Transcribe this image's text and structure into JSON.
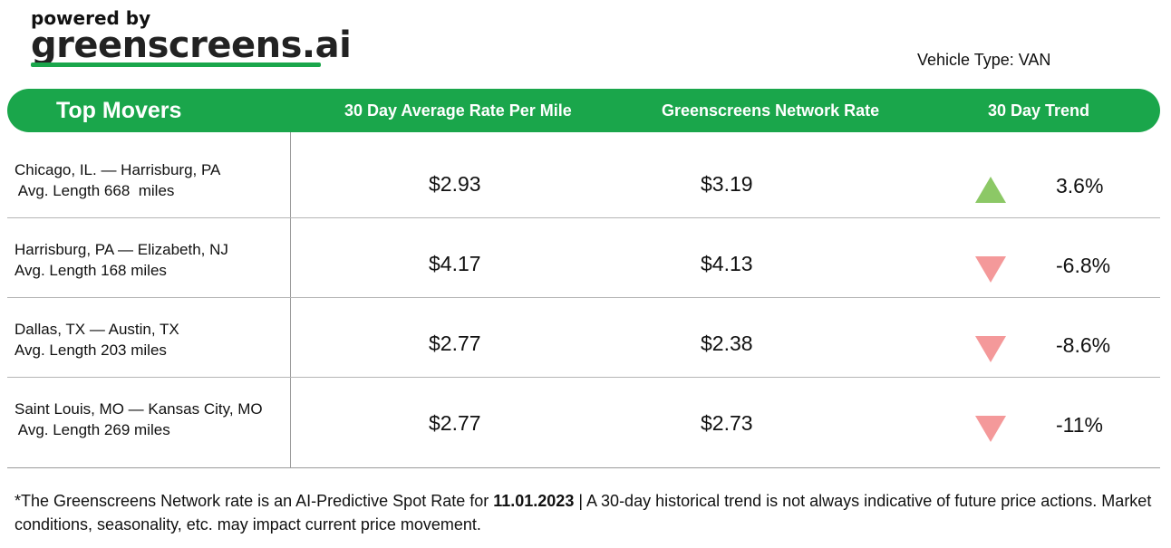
{
  "logo": {
    "powered_by": "powered by",
    "brand": "greenscreens.ai"
  },
  "vehicle_type": "Vehicle Type: VAN",
  "header": {
    "top_movers": "Top Movers",
    "avg_rate": "30 Day Average Rate Per Mile",
    "network_rate": "Greenscreens Network Rate",
    "trend": "30 Day Trend"
  },
  "rows": [
    {
      "lane": "Chicago, IL. — Harrisburg, PA",
      "length": " Avg. Length 668  miles",
      "avg": "$2.93",
      "net": "$3.19",
      "trend": "3.6%",
      "direction": "up"
    },
    {
      "lane": "Harrisburg, PA — Elizabeth, NJ",
      "length": "Avg. Length 168 miles",
      "avg": "$4.17",
      "net": "$4.13",
      "trend": "-6.8%",
      "direction": "down"
    },
    {
      "lane": "Dallas, TX — Austin, TX",
      "length": "Avg. Length 203 miles",
      "avg": "$2.77",
      "net": "$2.38",
      "trend": "-8.6%",
      "direction": "down"
    },
    {
      "lane": "Saint Louis, MO — Kansas City, MO",
      "length": " Avg. Length 269 miles",
      "avg": "$2.77",
      "net": "$2.73",
      "trend": "-11%",
      "direction": "down"
    }
  ],
  "colors": {
    "brand_green": "#1aa64b",
    "trend_up": "#8cc866",
    "trend_down": "#f4999a"
  },
  "footnote": {
    "prefix": "*The Greenscreens Network rate is an AI-Predictive Spot Rate for ",
    "date": "11.01.2023",
    "suffix": " | A 30-day historical trend is not always indicative of future price actions. Market conditions, seasonality, etc. may impact current price movement."
  }
}
